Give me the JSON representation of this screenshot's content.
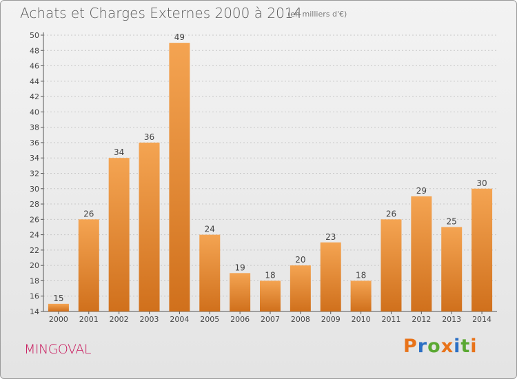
{
  "header": {
    "title": "Achats et Charges Externes 2000 à 2014",
    "subtitle": "(en milliers d'€)"
  },
  "footer": {
    "commune": "MINGOVAL",
    "brand_letters": [
      "P",
      "r",
      "o",
      "x",
      "i",
      "t",
      "i"
    ],
    "brand_colors": [
      "#e8731a",
      "#2b6fc4",
      "#5aa832",
      "#e8731a",
      "#2b6fc4",
      "#5aa832",
      "#e8731a"
    ]
  },
  "colors": {
    "bar_light": "#f4a452",
    "bar_dark": "#d0701c",
    "axis": "#555555",
    "grid": "#c8c8c8"
  },
  "chart_data": {
    "type": "bar",
    "categories": [
      "2000",
      "2001",
      "2002",
      "2003",
      "2004",
      "2005",
      "2006",
      "2007",
      "2008",
      "2009",
      "2010",
      "2011",
      "2012",
      "2013",
      "2014"
    ],
    "values": [
      15,
      26,
      34,
      36,
      49,
      24,
      19,
      18,
      20,
      23,
      18,
      26,
      29,
      25,
      30
    ],
    "ylim": [
      14,
      50
    ],
    "yticks": [
      14,
      16,
      18,
      20,
      22,
      24,
      26,
      28,
      30,
      32,
      34,
      36,
      38,
      40,
      42,
      44,
      46,
      48,
      50
    ],
    "grid": true
  }
}
